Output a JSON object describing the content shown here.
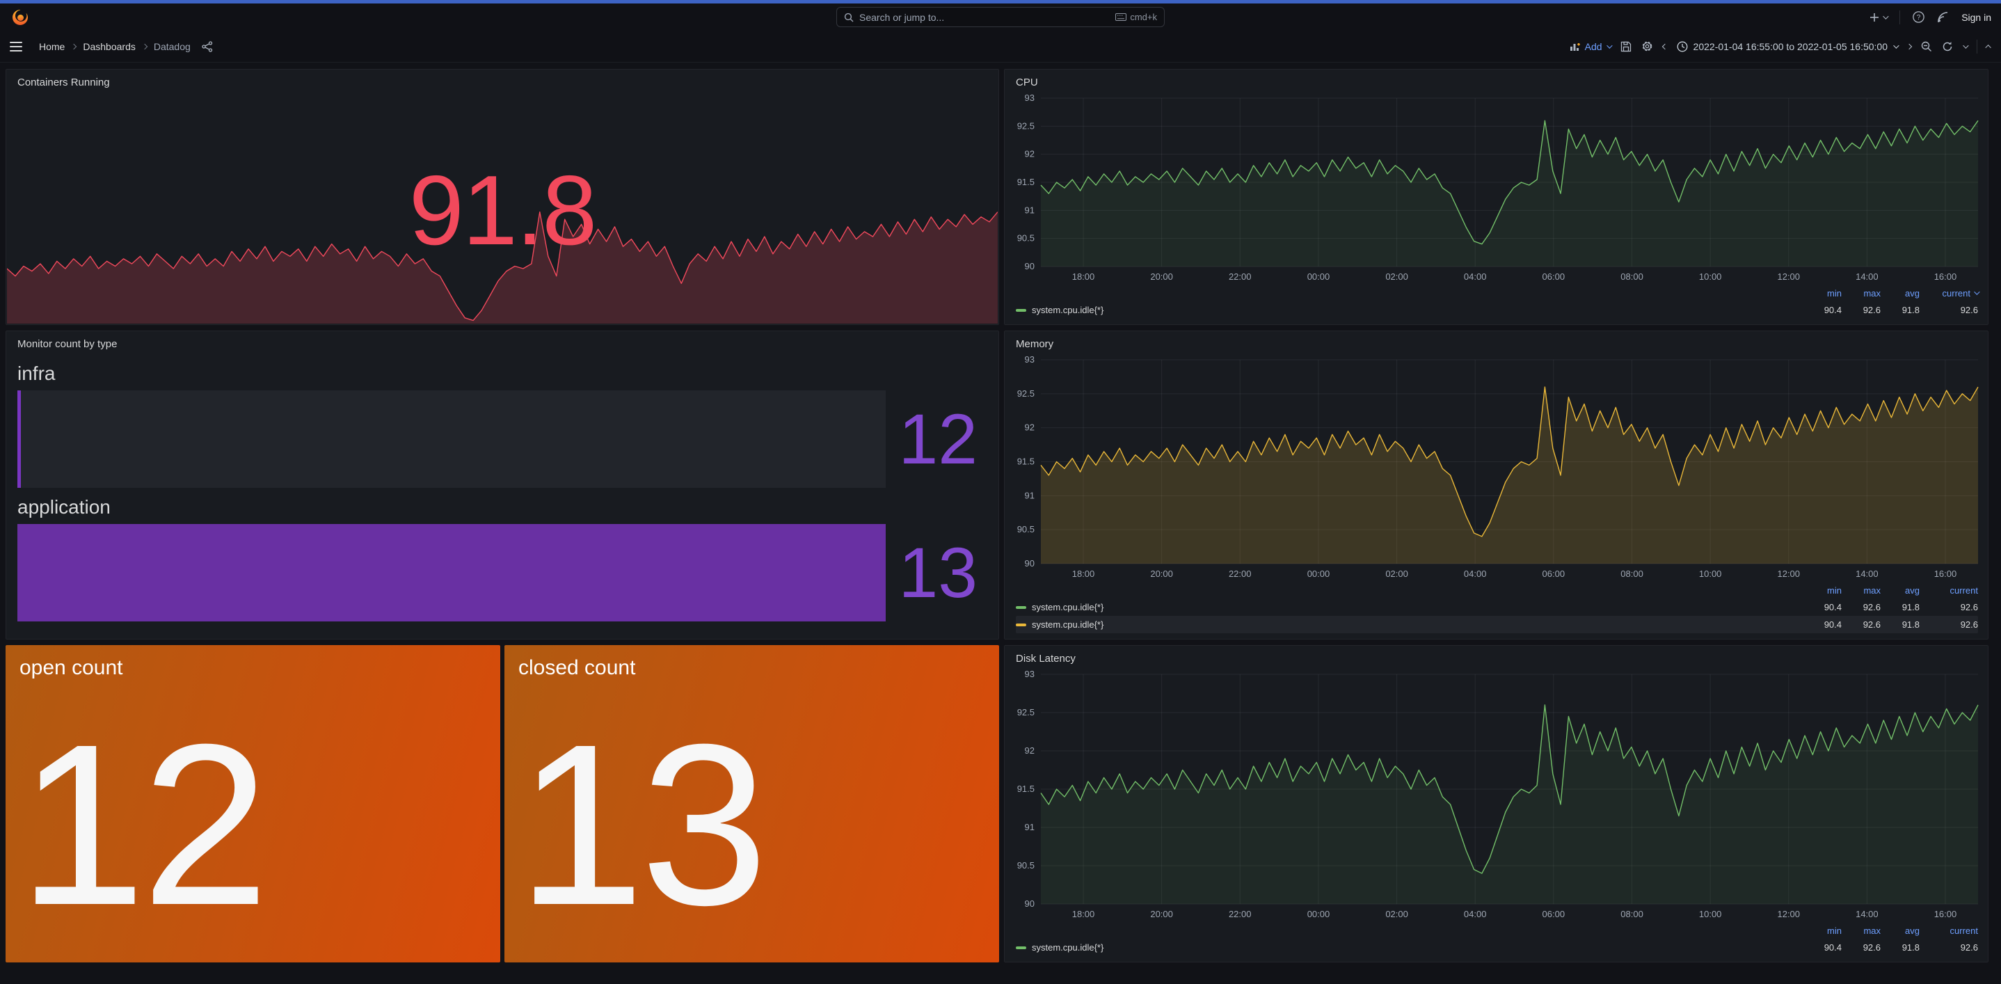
{
  "topnav": {
    "search_placeholder": "Search or jump to...",
    "search_shortcut": "cmd+k",
    "signin_label": "Sign in"
  },
  "breadcrumbs": {
    "home": "Home",
    "dashboards": "Dashboards",
    "current": "Datadog"
  },
  "toolbar": {
    "add_label": "Add",
    "time_range": "2022-01-04 16:55:00 to 2022-01-05 16:50:00"
  },
  "legend_headers": {
    "min": "min",
    "max": "max",
    "avg": "avg",
    "current": "current"
  },
  "panels": {
    "containers": {
      "title": "Containers Running",
      "value": "91.8"
    },
    "cpu": {
      "title": "CPU",
      "series_name": "system.cpu.idle{*}",
      "stats": {
        "min": "90.4",
        "max": "92.6",
        "avg": "91.8",
        "current": "92.6"
      }
    },
    "monitor": {
      "title": "Monitor count by type",
      "items": [
        {
          "label": "infra",
          "value": "12"
        },
        {
          "label": "application",
          "value": "13"
        }
      ]
    },
    "memory": {
      "title": "Memory",
      "series": [
        {
          "name": "system.cpu.idle{*}"
        },
        {
          "name": "system.cpu.idle{*}"
        }
      ],
      "stats": {
        "min": "90.4",
        "max": "92.6",
        "avg": "91.8",
        "current": "92.6"
      }
    },
    "open": {
      "title": "open count",
      "value": "12"
    },
    "closed": {
      "title": "closed count",
      "value": "13"
    },
    "disk": {
      "title": "Disk Latency",
      "series_name": "system.cpu.idle{*}",
      "stats": {
        "min": "90.4",
        "max": "92.6",
        "avg": "91.8",
        "current": "92.6"
      }
    }
  },
  "chart_data": {
    "type": "line",
    "title": "system.cpu.idle{*} shared series (CPU / Memory / Disk Latency / Containers sparkline)",
    "x_span": "2022-01-04 16:55:00 to 2022-01-05 16:50:00",
    "ylim": [
      90,
      93
    ],
    "yticks": [
      90,
      90.5,
      91,
      91.5,
      92,
      92.5,
      93
    ],
    "xticks": {
      "labels": [
        "18:00",
        "20:00",
        "22:00",
        "00:00",
        "02:00",
        "04:00",
        "06:00",
        "08:00",
        "10:00",
        "12:00",
        "14:00",
        "16:00"
      ],
      "pos": [
        0.0453,
        0.1289,
        0.2125,
        0.2962,
        0.3798,
        0.4634,
        0.547,
        0.6307,
        0.7143,
        0.7979,
        0.8815,
        0.9651
      ]
    },
    "stats": {
      "min": 90.4,
      "max": 92.6,
      "avg": 91.8,
      "current": 92.6
    },
    "values": [
      91.45,
      91.3,
      91.5,
      91.4,
      91.55,
      91.35,
      91.6,
      91.45,
      91.65,
      91.5,
      91.7,
      91.45,
      91.6,
      91.5,
      91.65,
      91.55,
      91.7,
      91.5,
      91.75,
      91.6,
      91.45,
      91.7,
      91.55,
      91.75,
      91.5,
      91.65,
      91.5,
      91.8,
      91.6,
      91.85,
      91.65,
      91.9,
      91.6,
      91.8,
      91.7,
      91.85,
      91.6,
      91.9,
      91.7,
      91.95,
      91.75,
      91.85,
      91.6,
      91.9,
      91.65,
      91.8,
      91.7,
      91.5,
      91.75,
      91.55,
      91.65,
      91.4,
      91.3,
      91.0,
      90.7,
      90.45,
      90.4,
      90.6,
      90.9,
      91.2,
      91.4,
      91.5,
      91.45,
      91.55,
      92.6,
      91.7,
      91.3,
      92.45,
      92.1,
      92.35,
      91.95,
      92.25,
      92.0,
      92.3,
      91.9,
      92.05,
      91.8,
      92.0,
      91.7,
      91.9,
      91.5,
      91.15,
      91.55,
      91.75,
      91.6,
      91.9,
      91.65,
      92.0,
      91.7,
      92.05,
      91.8,
      92.1,
      91.75,
      92.0,
      91.85,
      92.15,
      91.9,
      92.2,
      91.95,
      92.25,
      92.0,
      92.3,
      92.05,
      92.2,
      92.1,
      92.35,
      92.1,
      92.4,
      92.15,
      92.45,
      92.2,
      92.5,
      92.25,
      92.45,
      92.3,
      92.55,
      92.35,
      92.5,
      92.4,
      92.6
    ],
    "bar_gauge": {
      "categories": [
        "infra",
        "application"
      ],
      "values": [
        12,
        13
      ]
    },
    "stat_values": {
      "containers_running": 91.8,
      "open_count": 12,
      "closed_count": 13
    }
  },
  "colors": {
    "green": "#73BF69",
    "yellow": "#EAB839",
    "red": "#F2495C",
    "purple_bar": "#6930A3",
    "purple_sliver": "#7A36C2",
    "purple_text": "#8148CE",
    "accent_blue": "#6E9FFF",
    "top_strip": "#3D63C4",
    "orange_start": "#B05A11",
    "orange_end": "#DA4A0A"
  }
}
